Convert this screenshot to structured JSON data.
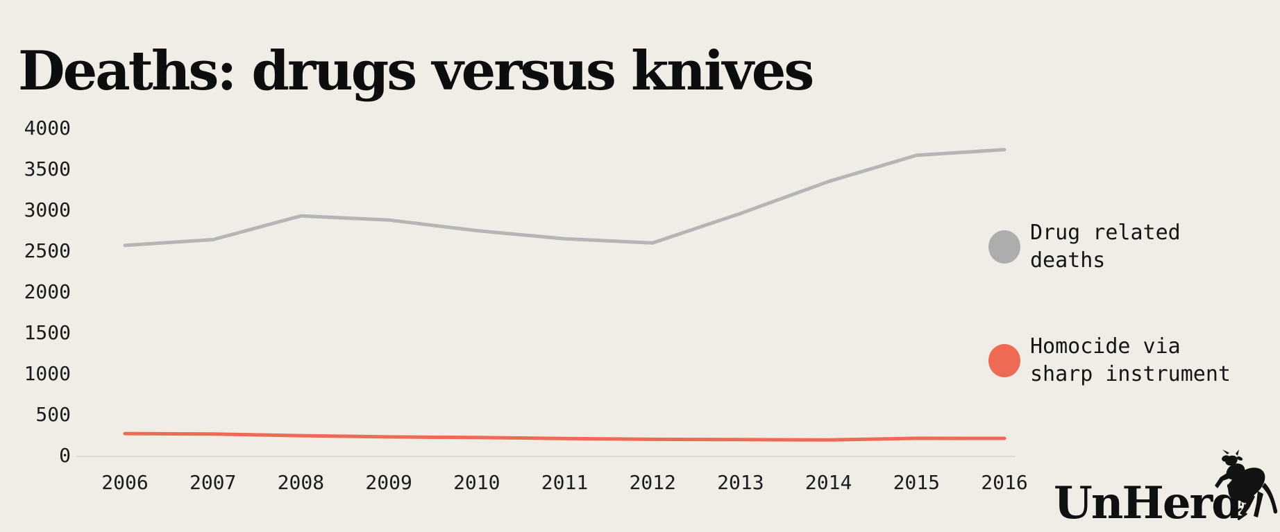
{
  "title": "Deaths: drugs versus knives",
  "legend": [
    {
      "label_line1": "Drug related",
      "label_line2": "deaths",
      "color": "#adadad"
    },
    {
      "label_line1": "Homocide via",
      "label_line2": "sharp instrument",
      "color": "#ef6a55"
    }
  ],
  "logo": {
    "text": "UnHerd",
    "icon": "unherd-cow-icon"
  },
  "colors": {
    "background": "#f0ede6",
    "drug_line": "#b5b5b5",
    "knife_line": "#ef6a55",
    "baseline": "#dedad2",
    "text": "#1b1b1b"
  },
  "chart_data": {
    "type": "line",
    "title": "Deaths: drugs versus knives",
    "x": [
      2006,
      2007,
      2008,
      2009,
      2010,
      2011,
      2012,
      2013,
      2014,
      2015,
      2016
    ],
    "series": [
      {
        "name": "Drug related deaths",
        "color": "#b5b5b5",
        "values": [
          2570,
          2640,
          2930,
          2880,
          2750,
          2650,
          2600,
          2960,
          3350,
          3670,
          3740
        ]
      },
      {
        "name": "Homocide via sharp instrument",
        "color": "#ef6a55",
        "values": [
          270,
          265,
          245,
          230,
          222,
          210,
          200,
          197,
          192,
          213,
          212
        ]
      }
    ],
    "xlabel": "",
    "ylabel": "",
    "ylim": [
      0,
      4000
    ],
    "yticks": [
      0,
      500,
      1000,
      1500,
      2000,
      2500,
      3000,
      3500,
      4000
    ],
    "grid": false,
    "legend_position": "right"
  }
}
